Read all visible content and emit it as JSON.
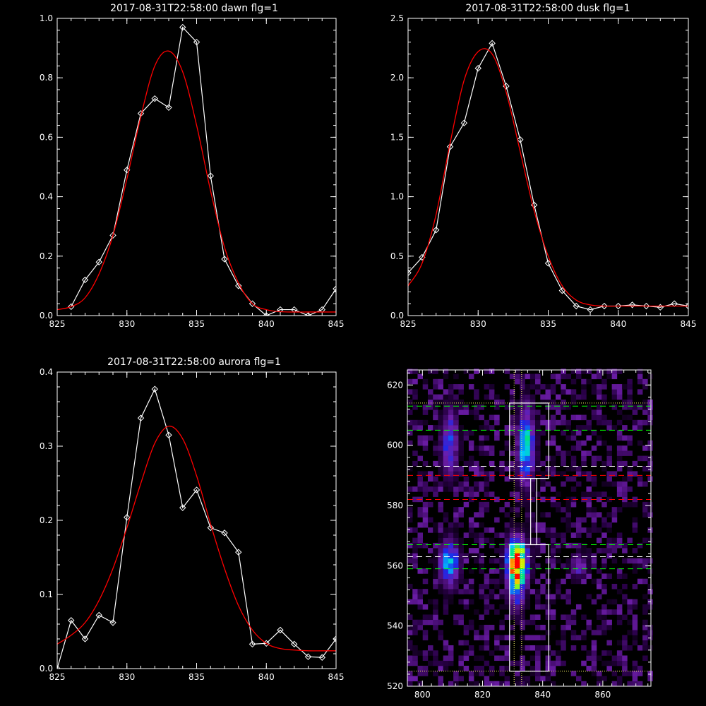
{
  "chart_data": [
    {
      "type": "line",
      "title": "2017-08-31T22:58:00 dawn flg=1",
      "xlabel": "",
      "ylabel": "",
      "xlim": [
        825,
        845
      ],
      "ylim": [
        0,
        1.0
      ],
      "xticks": [
        825,
        830,
        835,
        840,
        845
      ],
      "yticks": [
        0.0,
        0.2,
        0.4,
        0.6,
        0.8,
        1.0
      ],
      "ytick_labels": [
        "0.0",
        "0.2",
        "0.4",
        "0.6",
        "0.8",
        "1.0"
      ],
      "series": [
        {
          "color": "#ffffff",
          "marker": "diamond",
          "x": [
            826,
            827,
            828,
            829,
            830,
            831,
            832,
            833,
            834,
            835,
            836,
            837,
            838,
            839,
            840,
            841,
            842,
            843,
            844,
            845
          ],
          "y": [
            0.03,
            0.12,
            0.18,
            0.27,
            0.49,
            0.68,
            0.73,
            0.7,
            0.97,
            0.92,
            0.47,
            0.19,
            0.1,
            0.04,
            0.0,
            0.02,
            0.02,
            0.0,
            0.02,
            0.09
          ]
        },
        {
          "color": "#ff0000",
          "type": "gaussian-fit",
          "x": [
            825,
            826,
            827,
            828,
            829,
            830,
            831,
            832,
            833,
            834,
            835,
            836,
            837,
            838,
            839,
            840,
            841,
            842,
            843,
            844,
            845
          ],
          "y": [
            0.02,
            0.03,
            0.06,
            0.14,
            0.27,
            0.46,
            0.67,
            0.84,
            0.89,
            0.82,
            0.64,
            0.42,
            0.23,
            0.11,
            0.04,
            0.02,
            0.013,
            0.012,
            0.012,
            0.012,
            0.012
          ]
        }
      ]
    },
    {
      "type": "line",
      "title": "2017-08-31T22:58:00 dusk flg=1",
      "xlabel": "",
      "ylabel": "",
      "xlim": [
        825,
        845
      ],
      "ylim": [
        0,
        2.5
      ],
      "xticks": [
        825,
        830,
        835,
        840,
        845
      ],
      "yticks": [
        0.0,
        0.5,
        1.0,
        1.5,
        2.0,
        2.5
      ],
      "ytick_labels": [
        "0.0",
        "0.5",
        "1.0",
        "1.5",
        "2.0",
        "2.5"
      ],
      "series": [
        {
          "color": "#ffffff",
          "marker": "diamond",
          "x": [
            825,
            826,
            827,
            828,
            829,
            830,
            831,
            832,
            833,
            834,
            835,
            836,
            837,
            838,
            839,
            840,
            841,
            842,
            843,
            844,
            845
          ],
          "y": [
            0.36,
            0.49,
            0.72,
            1.42,
            1.62,
            2.08,
            2.29,
            1.93,
            1.48,
            0.93,
            0.44,
            0.21,
            0.08,
            0.05,
            0.08,
            0.08,
            0.09,
            0.08,
            0.07,
            0.1,
            0.08
          ]
        },
        {
          "color": "#ff0000",
          "type": "gaussian-fit",
          "x": [
            825,
            826,
            827,
            828,
            829,
            830,
            831,
            832,
            833,
            834,
            835,
            836,
            837,
            838,
            839,
            840,
            841,
            842,
            843,
            844,
            845
          ],
          "y": [
            0.25,
            0.44,
            0.85,
            1.45,
            1.98,
            2.22,
            2.2,
            1.88,
            1.38,
            0.88,
            0.5,
            0.25,
            0.13,
            0.09,
            0.08,
            0.08,
            0.08,
            0.08,
            0.08,
            0.08,
            0.08
          ]
        }
      ]
    },
    {
      "type": "line",
      "title": "2017-08-31T22:58:00 aurora flg=1",
      "xlabel": "",
      "ylabel": "",
      "xlim": [
        825,
        845
      ],
      "ylim": [
        0,
        0.4
      ],
      "xticks": [
        825,
        830,
        835,
        840,
        845
      ],
      "yticks": [
        0.0,
        0.1,
        0.2,
        0.3,
        0.4
      ],
      "ytick_labels": [
        "0.0",
        "0.1",
        "0.2",
        "0.3",
        "0.4"
      ],
      "series": [
        {
          "color": "#ffffff",
          "marker": "diamond",
          "x": [
            825,
            826,
            827,
            828,
            829,
            830,
            831,
            832,
            833,
            834,
            835,
            836,
            837,
            838,
            839,
            840,
            841,
            842,
            843,
            844,
            845
          ],
          "y": [
            0.0,
            0.065,
            0.04,
            0.072,
            0.062,
            0.204,
            0.338,
            0.377,
            0.315,
            0.217,
            0.241,
            0.19,
            0.183,
            0.157,
            0.033,
            0.034,
            0.052,
            0.033,
            0.016,
            0.015,
            0.04
          ]
        },
        {
          "color": "#ff0000",
          "type": "gaussian-fit",
          "x": [
            825,
            826,
            827,
            828,
            829,
            830,
            831,
            832,
            833,
            834,
            835,
            836,
            837,
            838,
            839,
            840,
            841,
            842,
            843,
            844,
            845
          ],
          "y": [
            0.033,
            0.045,
            0.062,
            0.092,
            0.135,
            0.19,
            0.25,
            0.304,
            0.327,
            0.31,
            0.26,
            0.195,
            0.135,
            0.085,
            0.052,
            0.034,
            0.027,
            0.025,
            0.024,
            0.024,
            0.024
          ]
        }
      ]
    },
    {
      "type": "heatmap",
      "title": "",
      "xlabel": "",
      "ylabel": "",
      "xlim": [
        795,
        876
      ],
      "ylim": [
        520,
        625
      ],
      "xticks": [
        800,
        820,
        840,
        860
      ],
      "yticks": [
        520,
        540,
        560,
        580,
        600,
        620
      ],
      "colormap": "rainbow",
      "hotspots": [
        {
          "x": 831.5,
          "y": 562,
          "sx": 2.4,
          "sy": 5.0,
          "amp": 1.0
        },
        {
          "x": 831.5,
          "y": 553,
          "sx": 2.0,
          "sy": 6.0,
          "amp": 0.45
        },
        {
          "x": 809,
          "y": 561,
          "sx": 2.3,
          "sy": 5.5,
          "amp": 0.55
        },
        {
          "x": 834.5,
          "y": 600,
          "sx": 2.0,
          "sy": 9.0,
          "amp": 0.6
        },
        {
          "x": 809,
          "y": 601,
          "sx": 2.0,
          "sy": 8.0,
          "amp": 0.42
        },
        {
          "x": 852,
          "y": 560,
          "sx": 2.0,
          "sy": 3.0,
          "amp": 0.3
        }
      ],
      "boxes": [
        {
          "x0": 829,
          "x1": 842,
          "y0": 525,
          "y1": 567
        },
        {
          "x0": 829,
          "x1": 842,
          "y0": 589,
          "y1": 614
        },
        {
          "x0": 836,
          "x1": 838,
          "y0": 567,
          "y1": 589
        }
      ],
      "hlines": [
        {
          "y": 614,
          "color": "#ffff66",
          "style": "dotted"
        },
        {
          "y": 613,
          "color": "#00ff00",
          "style": "dashed"
        },
        {
          "y": 605,
          "color": "#00ff00",
          "style": "dashed"
        },
        {
          "y": 593,
          "color": "#ffffff",
          "style": "dashed"
        },
        {
          "y": 590,
          "color": "#ff0000",
          "style": "dashed"
        },
        {
          "y": 582,
          "color": "#ff0000",
          "style": "dashed"
        },
        {
          "y": 567,
          "color": "#00ff00",
          "style": "dashed"
        },
        {
          "y": 563,
          "color": "#ffffff",
          "style": "dashed"
        },
        {
          "y": 559,
          "color": "#00ff00",
          "style": "dashed"
        },
        {
          "y": 525,
          "color": "#ffff66",
          "style": "dotted"
        }
      ],
      "vlines": [
        {
          "x": 830.5,
          "color": "#ffff66",
          "style": "dotted"
        },
        {
          "x": 833,
          "color": "#ffff66",
          "style": "dotted"
        }
      ]
    }
  ]
}
